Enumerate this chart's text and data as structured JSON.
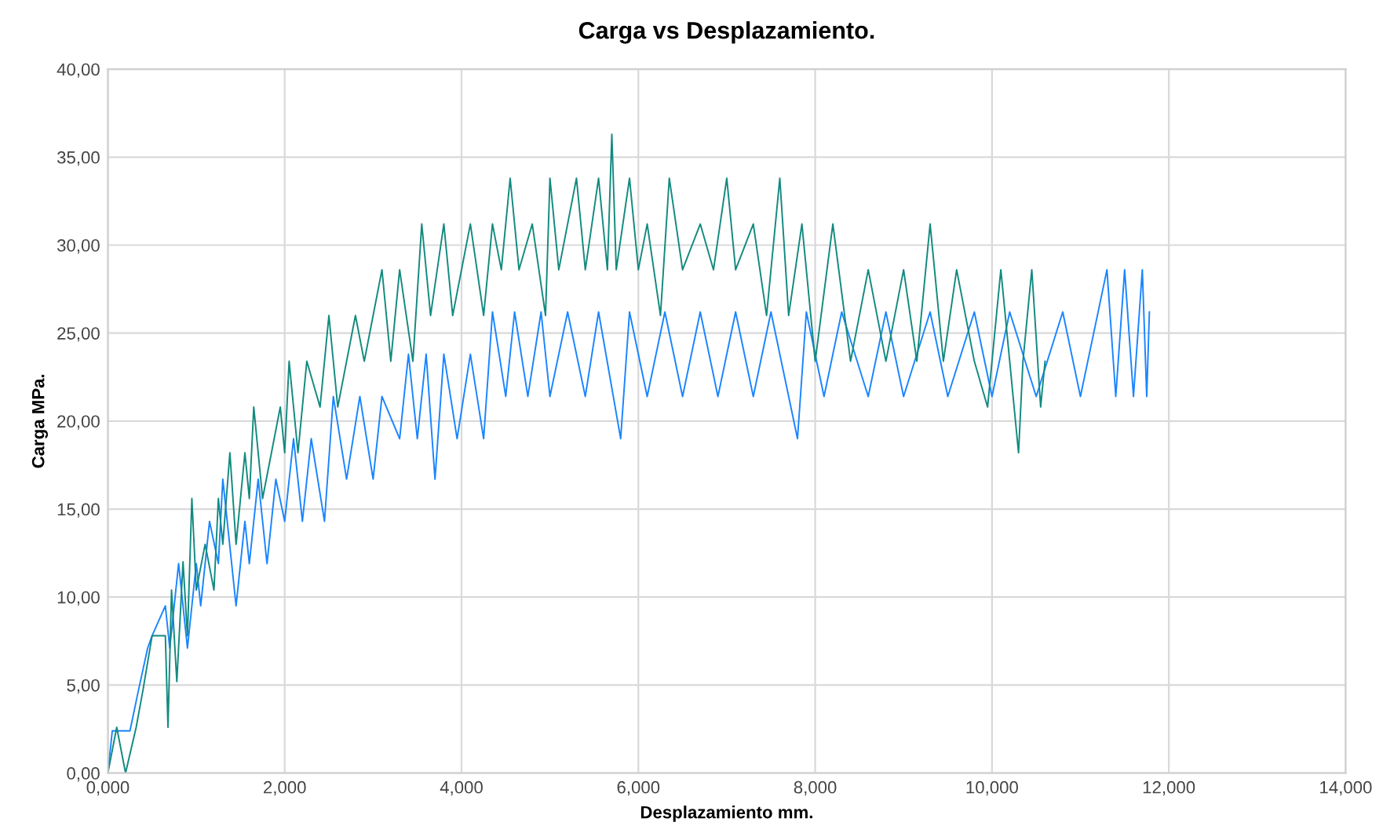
{
  "chart_data": {
    "type": "line",
    "title": "Carga vs Desplazamiento.",
    "xlabel": "Desplazamiento mm.",
    "ylabel": "Carga MPa.",
    "xlim": [
      0,
      14
    ],
    "ylim": [
      0,
      40
    ],
    "xticks": [
      {
        "value": 0,
        "label": "0,000"
      },
      {
        "value": 2,
        "label": "2,000"
      },
      {
        "value": 4,
        "label": "4,000"
      },
      {
        "value": 6,
        "label": "6,000"
      },
      {
        "value": 8,
        "label": "8,000"
      },
      {
        "value": 10,
        "label": "10,000"
      },
      {
        "value": 12,
        "label": "12,000"
      },
      {
        "value": 14,
        "label": "14,000"
      }
    ],
    "yticks": [
      {
        "value": 0,
        "label": "0,00"
      },
      {
        "value": 5,
        "label": "5,00"
      },
      {
        "value": 10,
        "label": "10,00"
      },
      {
        "value": 15,
        "label": "15,00"
      },
      {
        "value": 20,
        "label": "20,00"
      },
      {
        "value": 25,
        "label": "25,00"
      },
      {
        "value": 30,
        "label": "30,00"
      },
      {
        "value": 35,
        "label": "35,00"
      },
      {
        "value": 40,
        "label": "40,00"
      }
    ],
    "grid": true,
    "legend": false,
    "marker": "none",
    "line_style": "solid",
    "series": [
      {
        "color": "#1a85ff",
        "x": [
          0,
          0.05,
          0.25,
          0.35,
          0.45,
          0.5,
          0.65,
          0.7,
          0.8,
          0.9,
          1.0,
          1.05,
          1.15,
          1.25,
          1.3,
          1.45,
          1.55,
          1.6,
          1.7,
          1.8,
          1.9,
          2.0,
          2.1,
          2.2,
          2.3,
          2.45,
          2.55,
          2.7,
          2.85,
          3.0,
          3.1,
          3.3,
          3.4,
          3.5,
          3.6,
          3.7,
          3.8,
          3.95,
          4.1,
          4.25,
          4.35,
          4.5,
          4.6,
          4.75,
          4.9,
          5.0,
          5.2,
          5.4,
          5.55,
          5.8,
          5.9,
          6.1,
          6.3,
          6.5,
          6.7,
          6.9,
          7.1,
          7.3,
          7.5,
          7.8,
          7.9,
          8.1,
          8.3,
          8.6,
          8.8,
          9.0,
          9.3,
          9.5,
          9.8,
          10.0,
          10.2,
          10.5,
          10.8,
          11.0,
          11.3,
          11.4,
          11.5,
          11.6,
          11.7,
          11.75,
          11.78
        ],
        "values": [
          0,
          2.4,
          2.4,
          4.8,
          7.1,
          7.8,
          9.5,
          7.1,
          11.9,
          7.1,
          11.9,
          9.5,
          14.3,
          11.9,
          16.7,
          9.5,
          14.3,
          11.9,
          16.7,
          11.9,
          16.7,
          14.3,
          19.0,
          14.3,
          19.0,
          14.3,
          21.4,
          16.7,
          21.4,
          16.7,
          21.4,
          19.0,
          23.8,
          19.0,
          23.8,
          16.7,
          23.8,
          19.0,
          23.8,
          19.0,
          26.2,
          21.4,
          26.2,
          21.4,
          26.2,
          21.4,
          26.2,
          21.4,
          26.2,
          19.0,
          26.2,
          21.4,
          26.2,
          21.4,
          26.2,
          21.4,
          26.2,
          21.4,
          26.2,
          19.0,
          26.2,
          21.4,
          26.2,
          21.4,
          26.2,
          21.4,
          26.2,
          21.4,
          26.2,
          21.4,
          26.2,
          21.4,
          26.2,
          21.4,
          28.6,
          21.4,
          28.6,
          21.4,
          28.6,
          21.4,
          26.2
        ]
      },
      {
        "color": "#138a7f",
        "x": [
          0.0,
          0.1,
          0.2,
          0.32,
          0.4,
          0.5,
          0.65,
          0.68,
          0.72,
          0.78,
          0.85,
          0.9,
          0.95,
          1.0,
          1.1,
          1.2,
          1.25,
          1.3,
          1.38,
          1.45,
          1.55,
          1.6,
          1.65,
          1.75,
          1.85,
          1.95,
          2.0,
          2.05,
          2.15,
          2.25,
          2.4,
          2.5,
          2.6,
          2.7,
          2.8,
          2.9,
          3.0,
          3.1,
          3.2,
          3.3,
          3.45,
          3.55,
          3.65,
          3.8,
          3.9,
          4.0,
          4.1,
          4.25,
          4.35,
          4.45,
          4.55,
          4.65,
          4.8,
          4.95,
          5.0,
          5.1,
          5.3,
          5.4,
          5.55,
          5.65,
          5.7,
          5.75,
          5.9,
          6.0,
          6.1,
          6.25,
          6.35,
          6.5,
          6.7,
          6.85,
          7.0,
          7.1,
          7.3,
          7.45,
          7.6,
          7.7,
          7.85,
          8.0,
          8.2,
          8.4,
          8.6,
          8.8,
          9.0,
          9.15,
          9.3,
          9.45,
          9.6,
          9.8,
          9.95,
          10.1,
          10.2,
          10.3,
          10.35,
          10.45,
          10.55,
          10.6
        ],
        "values": [
          0,
          2.6,
          0,
          2.6,
          4.8,
          7.8,
          7.8,
          2.6,
          10.4,
          5.2,
          12.0,
          7.8,
          15.6,
          10.4,
          13.0,
          10.4,
          15.6,
          13.0,
          18.2,
          13.0,
          18.2,
          15.6,
          20.8,
          15.6,
          18.2,
          20.8,
          18.2,
          23.4,
          18.2,
          23.4,
          20.8,
          26.0,
          20.8,
          23.4,
          26.0,
          23.4,
          26.0,
          28.6,
          23.4,
          28.6,
          23.4,
          31.2,
          26.0,
          31.2,
          26.0,
          28.6,
          31.2,
          26.0,
          31.2,
          28.6,
          33.8,
          28.6,
          31.2,
          26.0,
          33.8,
          28.6,
          33.8,
          28.6,
          33.8,
          28.6,
          36.3,
          28.6,
          33.8,
          28.6,
          31.2,
          26.0,
          33.8,
          28.6,
          31.2,
          28.6,
          33.8,
          28.6,
          31.2,
          26.0,
          33.8,
          26.0,
          31.2,
          23.4,
          31.2,
          23.4,
          28.6,
          23.4,
          28.6,
          23.4,
          31.2,
          23.4,
          28.6,
          23.4,
          20.8,
          28.6,
          23.4,
          18.2,
          23.4,
          28.6,
          20.8,
          23.4
        ]
      }
    ]
  }
}
